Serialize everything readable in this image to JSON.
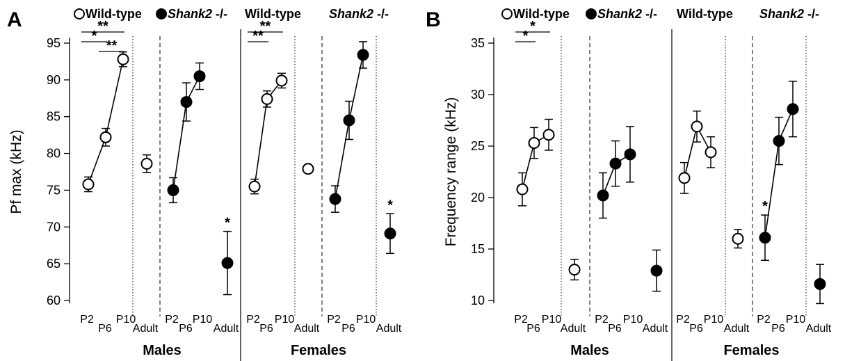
{
  "chart_data": [
    {
      "panel": "A",
      "type": "scatter",
      "ylabel": "Pf max (kHz)",
      "ylim": [
        60,
        95
      ],
      "yticks": [
        60,
        65,
        70,
        75,
        80,
        85,
        90,
        95
      ],
      "legend": [
        {
          "marker": "open",
          "label": "Wild-type"
        },
        {
          "marker": "filled",
          "label": "Shank2 -/-"
        }
      ],
      "group_titles": {
        "wt_females": "Wild-type",
        "ko_females": "Shank2 -/-"
      },
      "sex_labels": {
        "males": "Males",
        "females": "Females"
      },
      "x_categories": [
        "P2",
        "P6",
        "P10",
        "Adult"
      ],
      "series": [
        {
          "name": "Wild-type",
          "sex": "Males",
          "marker": "open",
          "pups": [
            {
              "x": "P2",
              "y": 75.8,
              "err": 1.0
            },
            {
              "x": "P6",
              "y": 82.2,
              "err": 1.2
            },
            {
              "x": "P10",
              "y": 92.8,
              "err": 1.0
            }
          ],
          "adult": {
            "y": 78.6,
            "err": 1.2
          }
        },
        {
          "name": "Shank2 -/-",
          "sex": "Males",
          "marker": "filled",
          "pups": [
            {
              "x": "P2",
              "y": 75.0,
              "err": 1.7
            },
            {
              "x": "P6",
              "y": 87.0,
              "err": 2.6
            },
            {
              "x": "P10",
              "y": 90.5,
              "err": 1.8
            }
          ],
          "adult": {
            "y": 65.1,
            "err": 4.3
          }
        },
        {
          "name": "Wild-type",
          "sex": "Females",
          "marker": "open",
          "pups": [
            {
              "x": "P2",
              "y": 75.5,
              "err": 1.0
            },
            {
              "x": "P6",
              "y": 87.4,
              "err": 1.1
            },
            {
              "x": "P10",
              "y": 89.9,
              "err": 1.0
            }
          ],
          "adult": {
            "y": 77.9,
            "err": 0.4
          }
        },
        {
          "name": "Shank2 -/-",
          "sex": "Females",
          "marker": "filled",
          "pups": [
            {
              "x": "P2",
              "y": 73.8,
              "err": 1.8
            },
            {
              "x": "P6",
              "y": 84.5,
              "err": 2.6
            },
            {
              "x": "P10",
              "y": 93.4,
              "err": 1.8
            }
          ],
          "adult": {
            "y": 69.1,
            "err": 2.7
          }
        }
      ],
      "significance": [
        {
          "group": 0,
          "from": "P2",
          "to": "P10",
          "label": "**"
        },
        {
          "group": 0,
          "from": "P2",
          "to": "P6",
          "label": "*"
        },
        {
          "group": 0,
          "from": "P6",
          "to": "P10",
          "label": "**"
        },
        {
          "group": 2,
          "from": "P2",
          "to": "P10",
          "label": "**"
        },
        {
          "group": 2,
          "from": "P2",
          "to": "P6",
          "label": "**"
        }
      ],
      "annotations": [
        {
          "group": 1,
          "at": "adult",
          "label": "*"
        },
        {
          "group": 3,
          "at": "adult",
          "label": "*"
        }
      ]
    },
    {
      "panel": "B",
      "type": "scatter",
      "ylabel": "Frequency range (kHz)",
      "ylim": [
        10,
        35
      ],
      "yticks": [
        10,
        15,
        20,
        25,
        30,
        35
      ],
      "legend": [
        {
          "marker": "open",
          "label": "Wild-type"
        },
        {
          "marker": "filled",
          "label": "Shank2 -/-"
        }
      ],
      "group_titles": {
        "wt_females": "Wild-type",
        "ko_females": "Shank2 -/-"
      },
      "sex_labels": {
        "males": "Males",
        "females": "Females"
      },
      "x_categories": [
        "P2",
        "P6",
        "P10",
        "Adult"
      ],
      "series": [
        {
          "name": "Wild-type",
          "sex": "Males",
          "marker": "open",
          "pups": [
            {
              "x": "P2",
              "y": 20.8,
              "err": 1.6
            },
            {
              "x": "P6",
              "y": 25.3,
              "err": 1.5
            },
            {
              "x": "P10",
              "y": 26.1,
              "err": 1.5
            }
          ],
          "adult": {
            "y": 13.0,
            "err": 1.0
          }
        },
        {
          "name": "Shank2 -/-",
          "sex": "Males",
          "marker": "filled",
          "pups": [
            {
              "x": "P2",
              "y": 20.2,
              "err": 2.2
            },
            {
              "x": "P6",
              "y": 23.3,
              "err": 2.2
            },
            {
              "x": "P10",
              "y": 24.2,
              "err": 2.7
            }
          ],
          "adult": {
            "y": 12.9,
            "err": 2.0
          }
        },
        {
          "name": "Wild-type",
          "sex": "Females",
          "marker": "open",
          "pups": [
            {
              "x": "P2",
              "y": 21.9,
              "err": 1.5
            },
            {
              "x": "P6",
              "y": 26.9,
              "err": 1.5
            },
            {
              "x": "P10",
              "y": 24.4,
              "err": 1.5
            }
          ],
          "adult": {
            "y": 16.0,
            "err": 0.9
          }
        },
        {
          "name": "Shank2 -/-",
          "sex": "Females",
          "marker": "filled",
          "pups": [
            {
              "x": "P2",
              "y": 16.1,
              "err": 2.2
            },
            {
              "x": "P6",
              "y": 25.5,
              "err": 2.3
            },
            {
              "x": "P10",
              "y": 28.6,
              "err": 2.7
            }
          ],
          "adult": {
            "y": 11.6,
            "err": 1.9
          }
        }
      ],
      "significance": [
        {
          "group": 0,
          "from": "P2",
          "to": "P10",
          "label": "*"
        },
        {
          "group": 0,
          "from": "P2",
          "to": "P6",
          "label": "*"
        }
      ],
      "annotations": [
        {
          "group": 3,
          "at": "P2",
          "label": "*"
        }
      ]
    }
  ]
}
